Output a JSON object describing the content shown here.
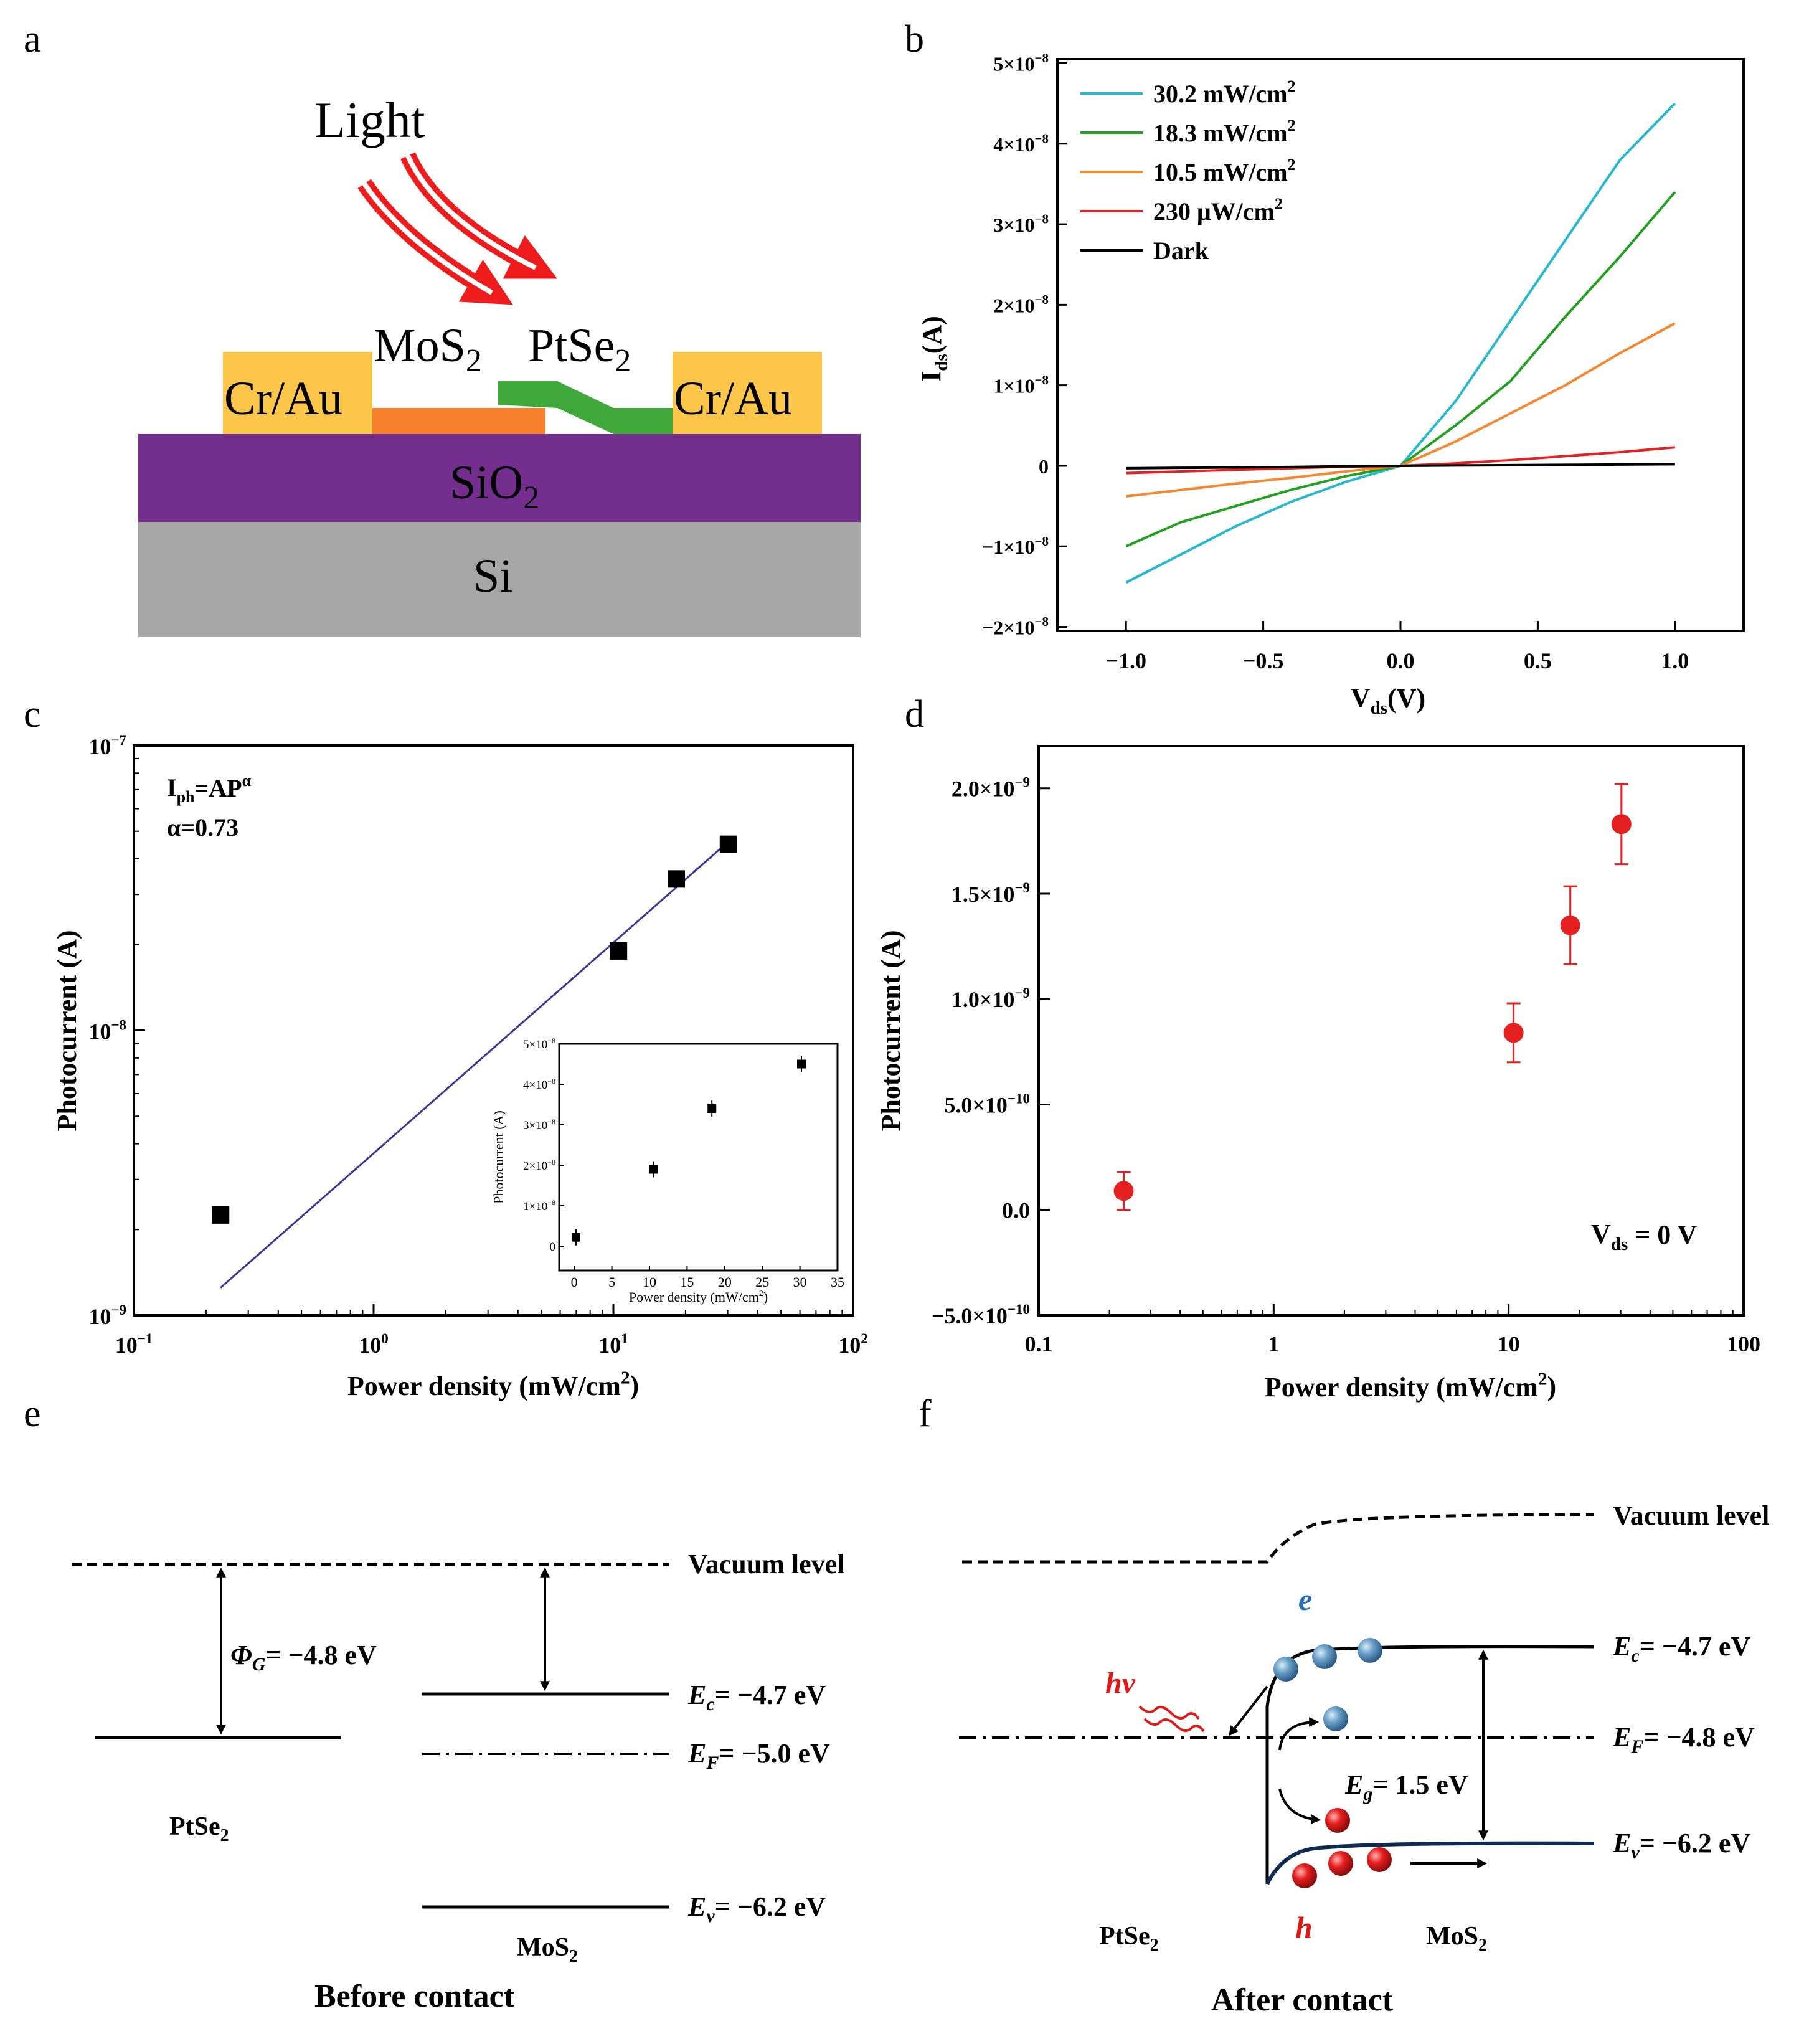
{
  "panel_letters": [
    "a",
    "b",
    "c",
    "d",
    "e",
    "f"
  ],
  "panel_a": {
    "light": "Light",
    "mos2": "MoS",
    "mos2_sub": "2",
    "ptse2": "PtSe",
    "ptse2_sub": "2",
    "electrode_left": "Cr/Au",
    "electrode_right": "Cr/Au",
    "oxide": "SiO",
    "oxide_sub": "2",
    "substrate": "Si",
    "colors": {
      "electrode": "#fcc64b",
      "mos2": "#f7812c",
      "ptse2": "#3fa83a",
      "oxide": "#742e8e",
      "substrate": "#a6a6a6",
      "light": "#ee1c1c"
    }
  },
  "chart_data": [
    {
      "panel": "b",
      "type": "line",
      "xlabel": "V",
      "xlabel_sub": "ds",
      "xlabel_unit": "(V)",
      "ylabel": "I",
      "ylabel_sub": "ds",
      "ylabel_unit": "(A)",
      "xlim": [
        -1.25,
        1.25
      ],
      "ylim": [
        -2.05e-08,
        5.05e-08
      ],
      "xticks": [
        -1.0,
        -0.5,
        0.0,
        0.5,
        1.0
      ],
      "xtick_labels": [
        "−1.0",
        "−0.5",
        "0.0",
        "0.5",
        "1.0"
      ],
      "yticks": [
        -2e-08,
        -1e-08,
        0,
        1e-08,
        2e-08,
        3e-08,
        4e-08,
        5e-08
      ],
      "ytick_labels": [
        {
          "m": "−2×10",
          "e": "−8"
        },
        {
          "m": "−1×10",
          "e": "−8"
        },
        {
          "m": "0",
          "e": ""
        },
        {
          "m": "1×10",
          "e": "−8"
        },
        {
          "m": "2×10",
          "e": "−8"
        },
        {
          "m": "3×10",
          "e": "−8"
        },
        {
          "m": "4×10",
          "e": "−8"
        },
        {
          "m": "5×10",
          "e": "−8"
        }
      ],
      "legend_position": "top-left",
      "x": [
        -1.0,
        -0.8,
        -0.6,
        -0.4,
        -0.2,
        0.0,
        0.2,
        0.4,
        0.6,
        0.8,
        1.0
      ],
      "series": [
        {
          "name": "30.2 mW/cm",
          "name_sup": "2",
          "color": "#25b8cf",
          "values": [
            -1.45e-08,
            -1.1e-08,
            -7.5e-09,
            -4.5e-09,
            -2e-09,
            0,
            8e-09,
            1.8e-08,
            2.8e-08,
            3.8e-08,
            4.5e-08
          ]
        },
        {
          "name": "18.3 mW/cm",
          "name_sup": "2",
          "color": "#21a021",
          "values": [
            -1e-08,
            -7e-09,
            -5e-09,
            -3e-09,
            -1.3e-09,
            0,
            5e-09,
            1.05e-08,
            1.85e-08,
            2.6e-08,
            3.4e-08
          ]
        },
        {
          "name": "10.5 mW/cm",
          "name_sup": "2",
          "color": "#f7862e",
          "values": [
            -3.8e-09,
            -3e-09,
            -2.2e-09,
            -1.5e-09,
            -7e-10,
            0,
            3e-09,
            6.5e-09,
            1e-08,
            1.4e-08,
            1.77e-08
          ]
        },
        {
          "name": "230 μW/cm",
          "name_sup": "2",
          "color": "#e42020",
          "values": [
            -9e-10,
            -7e-10,
            -5e-10,
            -3e-10,
            -1e-10,
            0,
            3e-10,
            7e-10,
            1.2e-09,
            1.7e-09,
            2.3e-09
          ]
        },
        {
          "name": "Dark",
          "name_sup": "",
          "color": "#000000",
          "values": [
            -3e-10,
            -2.5e-10,
            -2e-10,
            -1.5e-10,
            -5e-11,
            0,
            4e-11,
            8e-11,
            1.2e-10,
            1.6e-10,
            2e-10
          ]
        }
      ]
    },
    {
      "panel": "c",
      "type": "scatter",
      "xlabel": "Power density (mW/cm",
      "xlabel_sup": "2",
      "xlabel_end": ")",
      "ylabel": "Photocurrent (A)",
      "xscale": "log",
      "yscale": "log",
      "xlim": [
        0.1,
        100
      ],
      "ylim": [
        1e-09,
        1e-07
      ],
      "xtick_labels": [
        {
          "m": "10",
          "e": "−1"
        },
        {
          "m": "10",
          "e": "0"
        },
        {
          "m": "10",
          "e": "1"
        },
        {
          "m": "10",
          "e": "2"
        }
      ],
      "ytick_labels": [
        {
          "m": "10",
          "e": "−9"
        },
        {
          "m": "10",
          "e": "−8"
        },
        {
          "m": "10",
          "e": "−7"
        }
      ],
      "annotation_formula": {
        "a": "I",
        "b": "ph",
        "c": "=AP",
        "d": "α"
      },
      "annotation_alpha": "α=0.73",
      "points": {
        "x": [
          0.23,
          10.5,
          18.3,
          30.2
        ],
        "y": [
          2.25e-09,
          1.9e-08,
          3.4e-08,
          4.5e-08
        ]
      },
      "fit": {
        "x": [
          0.23,
          30.2
        ],
        "y": [
          1.25e-09,
          4.6e-08
        ],
        "color": "#3f3596"
      },
      "inset": {
        "type": "scatter",
        "xlabel": "Power density (mW/cm",
        "xlabel_sup": "2",
        "xlabel_end": ")",
        "ylabel": "Photocurrent (A)",
        "xlim": [
          -2,
          35
        ],
        "ylim": [
          -6e-09,
          5e-08
        ],
        "xtick_labels": [
          "0",
          "5",
          "10",
          "15",
          "20",
          "25",
          "30",
          "35"
        ],
        "ytick_labels": [
          {
            "m": "0",
            "e": ""
          },
          {
            "m": "1×10",
            "e": "−8"
          },
          {
            "m": "2×10",
            "e": "−8"
          },
          {
            "m": "3×10",
            "e": "−8"
          },
          {
            "m": "4×10",
            "e": "−8"
          },
          {
            "m": "5×10",
            "e": "−8"
          }
        ],
        "x": [
          0.23,
          10.5,
          18.3,
          30.2
        ],
        "y": [
          2.2e-09,
          1.9e-08,
          3.4e-08,
          4.5e-08
        ],
        "yerr": [
          2e-09,
          2e-09,
          2e-09,
          2e-09
        ]
      }
    },
    {
      "panel": "d",
      "type": "scatter",
      "xlabel": "Power density (mW/cm",
      "xlabel_sup": "2",
      "xlabel_end": ")",
      "ylabel": "Photocurrent (A)",
      "xscale": "log",
      "xlim": [
        0.1,
        100
      ],
      "ylim": [
        -5e-10,
        2.2e-09
      ],
      "xtick_labels": [
        "0.1",
        "1",
        "10",
        "100"
      ],
      "ytick_labels": [
        {
          "m": "−5.0×10",
          "e": "−10"
        },
        {
          "m": "0.0",
          "e": ""
        },
        {
          "m": "5.0×10",
          "e": "−10"
        },
        {
          "m": "1.0×10",
          "e": "−9"
        },
        {
          "m": "1.5×10",
          "e": "−9"
        },
        {
          "m": "2.0×10",
          "e": "−9"
        }
      ],
      "annotation": {
        "a": "V",
        "b": "ds",
        "c": " = 0 V"
      },
      "x": [
        0.23,
        10.5,
        18.3,
        30.2
      ],
      "y": [
        9e-11,
        8.4e-10,
        1.35e-09,
        1.83e-09
      ],
      "yerr": [
        9e-11,
        1.4e-10,
        1.85e-10,
        1.9e-10
      ],
      "color": "#e42020"
    }
  ],
  "panel_e": {
    "vacuum": "Vacuum level",
    "phi_symbol": "Φ",
    "phi_sub": "G",
    "phi_value": "= −4.8 eV",
    "ec_symbol": "E",
    "ec_sub": "c",
    "ec_value": "= −4.7 eV",
    "ef_symbol": "E",
    "ef_sub": "F",
    "ef_value": "= −5.0 eV",
    "ev_symbol": "E",
    "ev_sub": "v",
    "ev_value": "= −6.2 eV",
    "ptse2": "PtSe",
    "ptse2_sub": "2",
    "mos2": "MoS",
    "mos2_sub": "2",
    "caption": "Before contact"
  },
  "panel_f": {
    "vacuum": "Vacuum level",
    "electron": "e",
    "hole": "h",
    "hv": "hv",
    "ec_symbol": "E",
    "ec_sub": "c",
    "ec_value": "= −4.7 eV",
    "ef_symbol": "E",
    "ef_sub": "F",
    "ef_value": "= −4.8 eV",
    "ev_symbol": "E",
    "ev_sub": "v",
    "ev_value": "= −6.2 eV",
    "eg_symbol": "E",
    "eg_sub": "g",
    "eg_value": "= 1.5 eV",
    "ptse2": "PtSe",
    "ptse2_sub": "2",
    "mos2": "MoS",
    "mos2_sub": "2",
    "caption": "After contact",
    "colors": {
      "electron": "#5d92bd",
      "hole": "#e01818",
      "label_e": "#2a6db3"
    }
  }
}
